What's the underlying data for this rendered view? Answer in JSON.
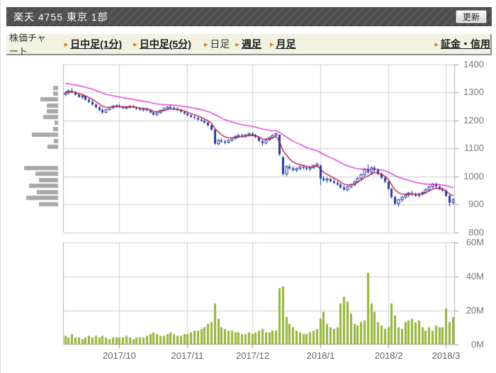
{
  "header": {
    "title": "楽天  4755  東京 1部",
    "refresh_label": "更新"
  },
  "toolbar": {
    "label": "株価チャート",
    "arrow_glyph": "▸",
    "tabs": [
      {
        "key": "intraday-1min",
        "label": "日中足(1分)",
        "active": false
      },
      {
        "key": "intraday-5min",
        "label": "日中足(5分)",
        "active": false
      },
      {
        "key": "daily",
        "label": "日足",
        "active": true
      },
      {
        "key": "weekly",
        "label": "週足",
        "active": false
      },
      {
        "key": "monthly",
        "label": "月足",
        "active": false
      },
      {
        "key": "margin",
        "label": "証金・信用",
        "active": false,
        "gap_before": true
      }
    ]
  },
  "chart_data": {
    "type": "candlestick+volume",
    "symbol": "楽天 4755",
    "price_axis": {
      "side": "right",
      "min": 800,
      "max": 1400,
      "ticks": [
        1400,
        1300,
        1200,
        1100,
        1000,
        900,
        800
      ]
    },
    "volume_axis": {
      "side": "right",
      "max": 60,
      "ticks": [
        {
          "label": "60M",
          "value": 60
        },
        {
          "label": "40M",
          "value": 40
        },
        {
          "label": "20M",
          "value": 20
        },
        {
          "label": "0M",
          "value": 0
        }
      ]
    },
    "x_axis": {
      "ticks": [
        {
          "label": "2017/10",
          "index": 16
        },
        {
          "label": "2017/11",
          "index": 36
        },
        {
          "label": "2017/12",
          "index": 55
        },
        {
          "label": "2018/1",
          "index": 75
        },
        {
          "label": "2018/2",
          "index": 95
        },
        {
          "label": "2018/3",
          "index": 112
        }
      ]
    },
    "candles_format": [
      "open",
      "high",
      "low",
      "close",
      "volume_millions"
    ],
    "candles": [
      [
        1292,
        1303,
        1286,
        1297,
        5
      ],
      [
        1297,
        1310,
        1293,
        1305,
        4
      ],
      [
        1305,
        1315,
        1298,
        1300,
        6
      ],
      [
        1300,
        1306,
        1288,
        1291,
        4
      ],
      [
        1291,
        1296,
        1280,
        1283,
        4
      ],
      [
        1283,
        1290,
        1275,
        1287,
        3
      ],
      [
        1287,
        1289,
        1270,
        1273,
        4
      ],
      [
        1273,
        1278,
        1262,
        1265,
        5
      ],
      [
        1265,
        1272,
        1252,
        1256,
        4
      ],
      [
        1256,
        1260,
        1242,
        1246,
        5
      ],
      [
        1246,
        1250,
        1232,
        1237,
        4
      ],
      [
        1237,
        1242,
        1222,
        1228,
        5
      ],
      [
        1228,
        1240,
        1225,
        1238,
        4
      ],
      [
        1238,
        1248,
        1234,
        1245,
        3
      ],
      [
        1245,
        1254,
        1240,
        1250,
        4
      ],
      [
        1250,
        1256,
        1244,
        1252,
        4
      ],
      [
        1252,
        1258,
        1245,
        1248,
        4
      ],
      [
        1248,
        1252,
        1240,
        1243,
        4
      ],
      [
        1243,
        1250,
        1238,
        1247,
        5
      ],
      [
        1247,
        1253,
        1242,
        1250,
        4
      ],
      [
        1250,
        1255,
        1243,
        1246,
        3
      ],
      [
        1246,
        1250,
        1238,
        1241,
        4
      ],
      [
        1241,
        1246,
        1234,
        1237,
        4
      ],
      [
        1237,
        1244,
        1231,
        1240,
        4
      ],
      [
        1240,
        1245,
        1232,
        1235,
        5
      ],
      [
        1235,
        1238,
        1224,
        1228,
        6
      ],
      [
        1228,
        1232,
        1216,
        1220,
        7
      ],
      [
        1220,
        1230,
        1214,
        1227,
        6
      ],
      [
        1227,
        1238,
        1223,
        1235,
        5
      ],
      [
        1235,
        1245,
        1231,
        1242,
        5
      ],
      [
        1242,
        1250,
        1238,
        1247,
        6
      ],
      [
        1247,
        1252,
        1240,
        1244,
        7
      ],
      [
        1244,
        1249,
        1237,
        1241,
        6
      ],
      [
        1241,
        1246,
        1232,
        1236,
        5
      ],
      [
        1236,
        1240,
        1226,
        1230,
        5
      ],
      [
        1230,
        1234,
        1220,
        1224,
        6
      ],
      [
        1224,
        1228,
        1214,
        1218,
        6
      ],
      [
        1218,
        1222,
        1208,
        1212,
        7
      ],
      [
        1212,
        1218,
        1204,
        1208,
        8
      ],
      [
        1208,
        1212,
        1198,
        1202,
        8
      ],
      [
        1202,
        1208,
        1194,
        1198,
        9
      ],
      [
        1198,
        1204,
        1188,
        1192,
        10
      ],
      [
        1192,
        1196,
        1178,
        1182,
        12
      ],
      [
        1182,
        1185,
        1162,
        1166,
        13
      ],
      [
        1166,
        1168,
        1112,
        1116,
        24
      ],
      [
        1116,
        1134,
        1110,
        1128,
        15
      ],
      [
        1128,
        1136,
        1120,
        1124,
        10
      ],
      [
        1124,
        1130,
        1114,
        1120,
        9
      ],
      [
        1120,
        1132,
        1116,
        1128,
        8
      ],
      [
        1128,
        1140,
        1124,
        1136,
        8
      ],
      [
        1136,
        1146,
        1130,
        1142,
        7
      ],
      [
        1142,
        1150,
        1136,
        1146,
        7
      ],
      [
        1146,
        1152,
        1138,
        1143,
        6
      ],
      [
        1143,
        1150,
        1137,
        1148,
        6
      ],
      [
        1148,
        1156,
        1142,
        1152,
        7
      ],
      [
        1152,
        1158,
        1144,
        1148,
        6
      ],
      [
        1148,
        1152,
        1136,
        1140,
        7
      ],
      [
        1140,
        1144,
        1122,
        1126,
        8
      ],
      [
        1126,
        1132,
        1108,
        1118,
        9
      ],
      [
        1118,
        1134,
        1114,
        1130,
        7
      ],
      [
        1130,
        1142,
        1126,
        1138,
        7
      ],
      [
        1138,
        1150,
        1134,
        1146,
        8
      ],
      [
        1146,
        1156,
        1142,
        1152,
        8
      ],
      [
        1148,
        1150,
        1072,
        1078,
        33
      ],
      [
        1068,
        1072,
        1002,
        1008,
        34
      ],
      [
        1008,
        1040,
        1000,
        1034,
        16
      ],
      [
        1034,
        1044,
        1022,
        1028,
        12
      ],
      [
        1028,
        1036,
        1016,
        1022,
        10
      ],
      [
        1022,
        1032,
        1014,
        1028,
        8
      ],
      [
        1028,
        1038,
        1020,
        1034,
        7
      ],
      [
        1034,
        1040,
        1024,
        1030,
        6
      ],
      [
        1030,
        1036,
        1020,
        1026,
        6
      ],
      [
        1026,
        1034,
        1018,
        1030,
        7
      ],
      [
        1030,
        1042,
        1026,
        1038,
        8
      ],
      [
        1038,
        1048,
        1032,
        1044,
        9
      ],
      [
        1038,
        1042,
        968,
        992,
        15
      ],
      [
        992,
        1002,
        980,
        986,
        19
      ],
      [
        986,
        996,
        976,
        990,
        12
      ],
      [
        990,
        994,
        978,
        982,
        10
      ],
      [
        982,
        990,
        972,
        976,
        9
      ],
      [
        976,
        984,
        966,
        970,
        10
      ],
      [
        970,
        976,
        956,
        960,
        24
      ],
      [
        960,
        968,
        948,
        952,
        28
      ],
      [
        952,
        966,
        946,
        962,
        25
      ],
      [
        962,
        974,
        956,
        970,
        18
      ],
      [
        970,
        984,
        964,
        980,
        12
      ],
      [
        980,
        996,
        974,
        992,
        11
      ],
      [
        992,
        1010,
        986,
        1005,
        13
      ],
      [
        1005,
        1030,
        998,
        1024,
        14
      ],
      [
        1024,
        1042,
        1008,
        1014,
        42
      ],
      [
        1014,
        1036,
        1004,
        1030,
        24
      ],
      [
        1030,
        1038,
        1016,
        1022,
        19
      ],
      [
        1022,
        1028,
        1004,
        1008,
        13
      ],
      [
        1008,
        1014,
        990,
        994,
        11
      ],
      [
        994,
        1000,
        976,
        980,
        9
      ],
      [
        980,
        984,
        950,
        955,
        10
      ],
      [
        955,
        958,
        920,
        926,
        24
      ],
      [
        926,
        930,
        896,
        902,
        17
      ],
      [
        902,
        920,
        890,
        916,
        10
      ],
      [
        916,
        930,
        908,
        925,
        9
      ],
      [
        925,
        938,
        918,
        933,
        13
      ],
      [
        933,
        944,
        926,
        940,
        14
      ],
      [
        940,
        948,
        930,
        936,
        15
      ],
      [
        936,
        942,
        926,
        931,
        13
      ],
      [
        931,
        940,
        924,
        937,
        14
      ],
      [
        937,
        946,
        930,
        942,
        10
      ],
      [
        942,
        956,
        936,
        952,
        8
      ],
      [
        952,
        966,
        946,
        962,
        10
      ],
      [
        962,
        976,
        956,
        971,
        8
      ],
      [
        971,
        978,
        958,
        963,
        11
      ],
      [
        963,
        970,
        950,
        955,
        10
      ],
      [
        955,
        962,
        944,
        949,
        10
      ],
      [
        949,
        952,
        926,
        930,
        21
      ],
      [
        930,
        934,
        892,
        906,
        13
      ],
      [
        906,
        922,
        900,
        916,
        16
      ]
    ],
    "moving_averages": [
      {
        "name": "short-ma",
        "type": "ema",
        "alpha": 0.28,
        "seed": 1302,
        "color": "#bb0a3c"
      },
      {
        "name": "long-ma",
        "type": "ema",
        "alpha": 0.065,
        "seed": 1334,
        "color": "#d629d6"
      }
    ],
    "volume_by_price": {
      "prices": [
        1316,
        1295,
        1274,
        1253,
        1232,
        1211,
        1190,
        1168,
        1147,
        1126,
        1105,
        1030,
        1008,
        987,
        966,
        944,
        923,
        901
      ],
      "widths": [
        7,
        7,
        25,
        16,
        16,
        21,
        5,
        7,
        37,
        6,
        15,
        48,
        32,
        27,
        41,
        30,
        45,
        27
      ],
      "max_width": 48
    },
    "colors": {
      "candle": "#1e3a9e",
      "candle_hollow_fill": "#ffffff",
      "volume_bar": "#92b43a",
      "profile_bar": "#a8a8a8",
      "grid": "#cccccc",
      "border": "#b0b0b0",
      "tick": "#999999",
      "axis_text": "#777777"
    },
    "legend": "none",
    "grid": true
  }
}
